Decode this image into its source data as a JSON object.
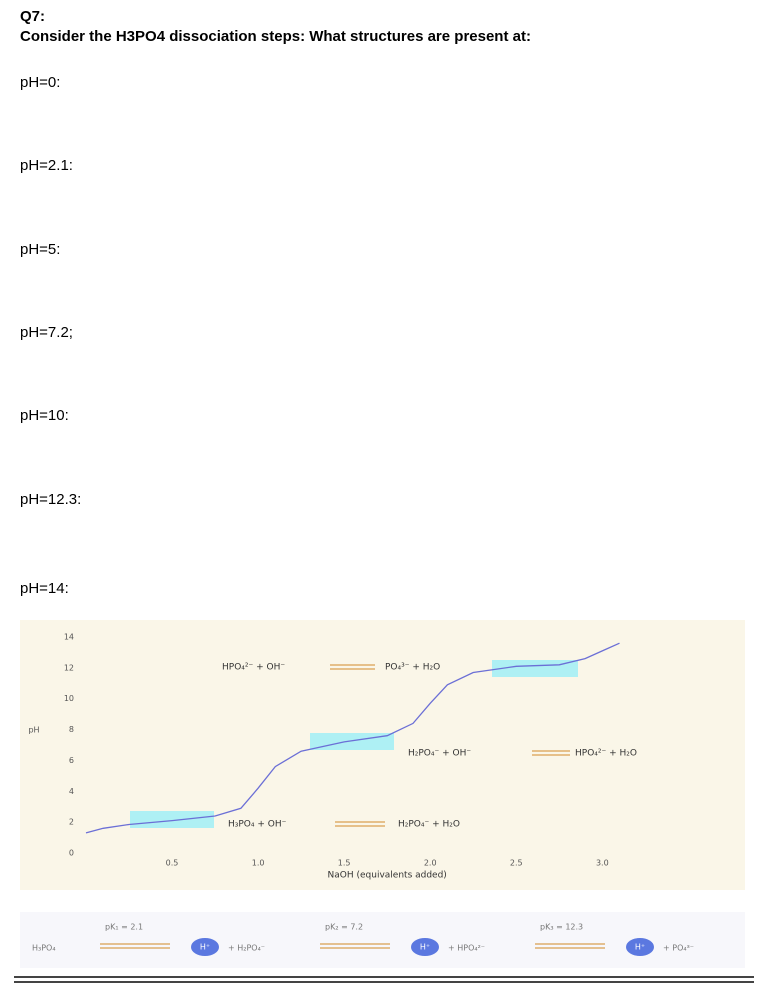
{
  "question": {
    "number": "Q7:",
    "text": "Consider the H3PO4 dissociation steps: What structures are present at:"
  },
  "prompts": [
    "pH=0:",
    "pH=2.1:",
    "pH=5:",
    "pH=7.2;",
    "pH=10:",
    "pH=12.3:",
    "pH=14:"
  ],
  "figure": {
    "type": "line",
    "ylabel": "pH",
    "xlabel": "NaOH (equivalents added)",
    "x": [
      0,
      0.1,
      0.25,
      0.5,
      0.75,
      0.9,
      1.0,
      1.1,
      1.25,
      1.5,
      1.75,
      1.9,
      2.0,
      2.1,
      2.25,
      2.5,
      2.75,
      2.9,
      3.0,
      3.1
    ],
    "y": [
      1.3,
      1.6,
      1.85,
      2.1,
      2.4,
      2.9,
      4.2,
      5.6,
      6.6,
      7.2,
      7.6,
      8.4,
      9.7,
      10.9,
      11.7,
      12.1,
      12.2,
      12.6,
      13.1,
      13.6
    ],
    "color": "#6b6fd6",
    "xlim": [
      0,
      3.8
    ],
    "ylim": [
      0,
      14
    ],
    "xticks": [
      0.5,
      {
        "value": 1,
        "label": "1.0"
      },
      1.5,
      {
        "value": 2,
        "label": "2.0"
      },
      2.5,
      {
        "value": 3,
        "label": "3.0"
      }
    ],
    "yticks": [
      0,
      2,
      4,
      6,
      8,
      10,
      12,
      14
    ],
    "reactions": [
      {
        "left": "HPO₄²⁻ + OH⁻",
        "right": "PO₄³⁻ + H₂O"
      },
      {
        "left": "H₂PO₄⁻ + OH⁻",
        "right": "HPO₄²⁻ + H₂O"
      },
      {
        "left": "H₃PO₄ + OH⁻",
        "right": "H₂PO₄⁻ + H₂O"
      }
    ]
  },
  "scheme": {
    "acid": "H₃PO₄",
    "steps": [
      {
        "pk": "pK₁ = 2.1",
        "proton": "H⁺",
        "base": "+ H₂PO₄⁻"
      },
      {
        "pk": "pK₂ = 7.2",
        "proton": "H⁺",
        "base": "+ HPO₄²⁻"
      },
      {
        "pk": "pK₃ = 12.3",
        "proton": "H⁺",
        "base": "+ PO₄³⁻"
      }
    ]
  }
}
